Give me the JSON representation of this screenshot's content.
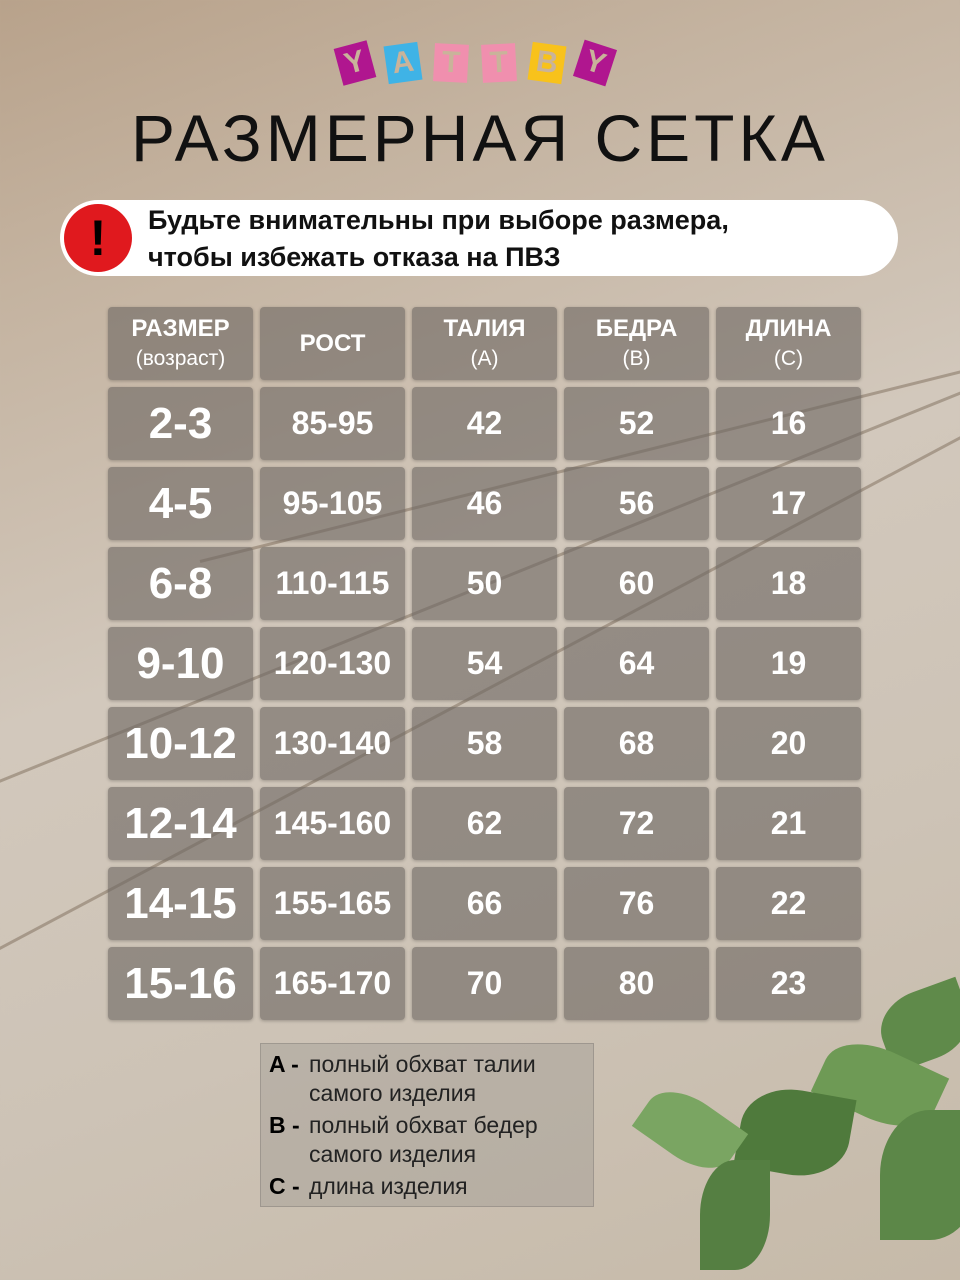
{
  "logo": {
    "letters": [
      "Y",
      "A",
      "T",
      "T",
      "B",
      "Y"
    ],
    "colors": [
      "#b0168f",
      "#3fb3e6",
      "#f08fae",
      "#f08fae",
      "#f8c21b",
      "#b0168f"
    ]
  },
  "title": "РАЗМЕРНАЯ СЕТКА",
  "warning": {
    "icon": "exclamation-icon",
    "line1": "Будьте внимательны при выборе размера,",
    "line2": "чтобы избежать отказа на ПВЗ"
  },
  "table": {
    "headers": [
      {
        "main": "РАЗМЕР",
        "sub": "(возраст)"
      },
      {
        "main": "РОСТ",
        "sub": ""
      },
      {
        "main": "ТАЛИЯ",
        "sub": "(А)"
      },
      {
        "main": "БЕДРА",
        "sub": "(В)"
      },
      {
        "main": "ДЛИНА",
        "sub": "(С)"
      }
    ],
    "rows": [
      [
        "2-3",
        "85-95",
        "42",
        "52",
        "16"
      ],
      [
        "4-5",
        "95-105",
        "46",
        "56",
        "17"
      ],
      [
        "6-8",
        "110-115",
        "50",
        "60",
        "18"
      ],
      [
        "9-10",
        "120-130",
        "54",
        "64",
        "19"
      ],
      [
        "10-12",
        "130-140",
        "58",
        "68",
        "20"
      ],
      [
        "12-14",
        "145-160",
        "62",
        "72",
        "21"
      ],
      [
        "14-15",
        "155-165",
        "66",
        "76",
        "22"
      ],
      [
        "15-16",
        "165-170",
        "70",
        "80",
        "23"
      ]
    ]
  },
  "legend": [
    {
      "key": "A -",
      "line1": "полный обхват талии",
      "line2": "самого изделия"
    },
    {
      "key": "B -",
      "line1": "полный обхват бедер",
      "line2": "самого изделия"
    },
    {
      "key": "C -",
      "line1": "длина изделия",
      "line2": ""
    }
  ]
}
